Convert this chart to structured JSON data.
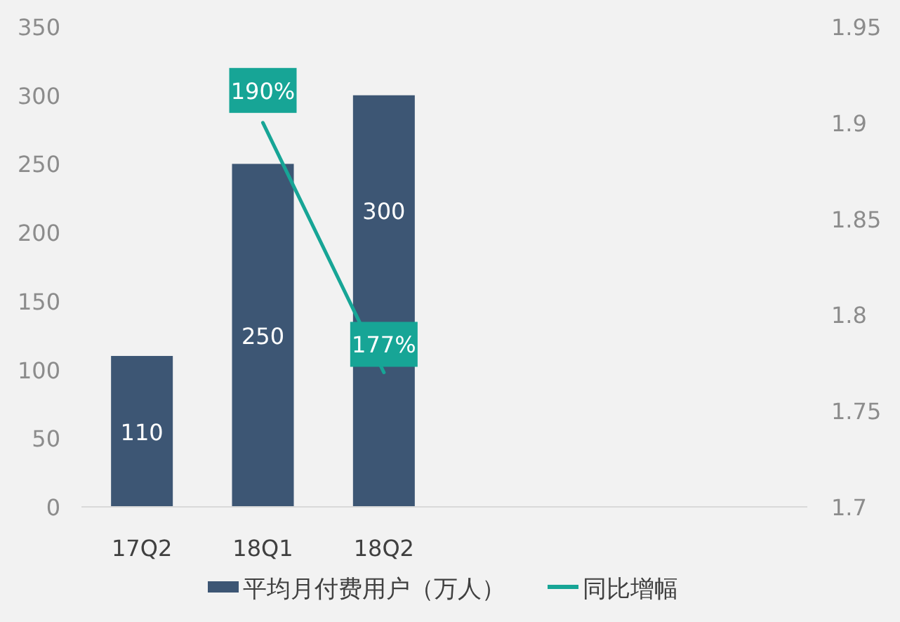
{
  "chart_data": {
    "type": "bar",
    "categories": [
      "17Q2",
      "18Q1",
      "18Q2",
      null,
      null,
      null
    ],
    "series": [
      {
        "name": "平均月付费用户（万人）",
        "color": "#3d5674",
        "values": [
          110,
          250,
          300,
          null,
          null,
          null
        ]
      },
      {
        "name": "同比增幅",
        "type": "line",
        "axis": "y2",
        "color": "#17a596",
        "values": [
          null,
          1.9,
          1.77,
          null,
          null,
          null
        ],
        "value_labels": [
          null,
          "190%",
          "177%",
          null,
          null,
          null
        ]
      }
    ],
    "ylim": [
      0,
      350
    ],
    "yticks": [
      0,
      50,
      100,
      150,
      200,
      250,
      300,
      350
    ],
    "y2lim": [
      1.7,
      1.95
    ],
    "y2ticks": [
      1.7,
      1.75,
      1.8,
      1.85,
      1.9,
      1.95
    ],
    "data_labels": true,
    "legend": "bottom",
    "grid": false,
    "marker": "none"
  }
}
